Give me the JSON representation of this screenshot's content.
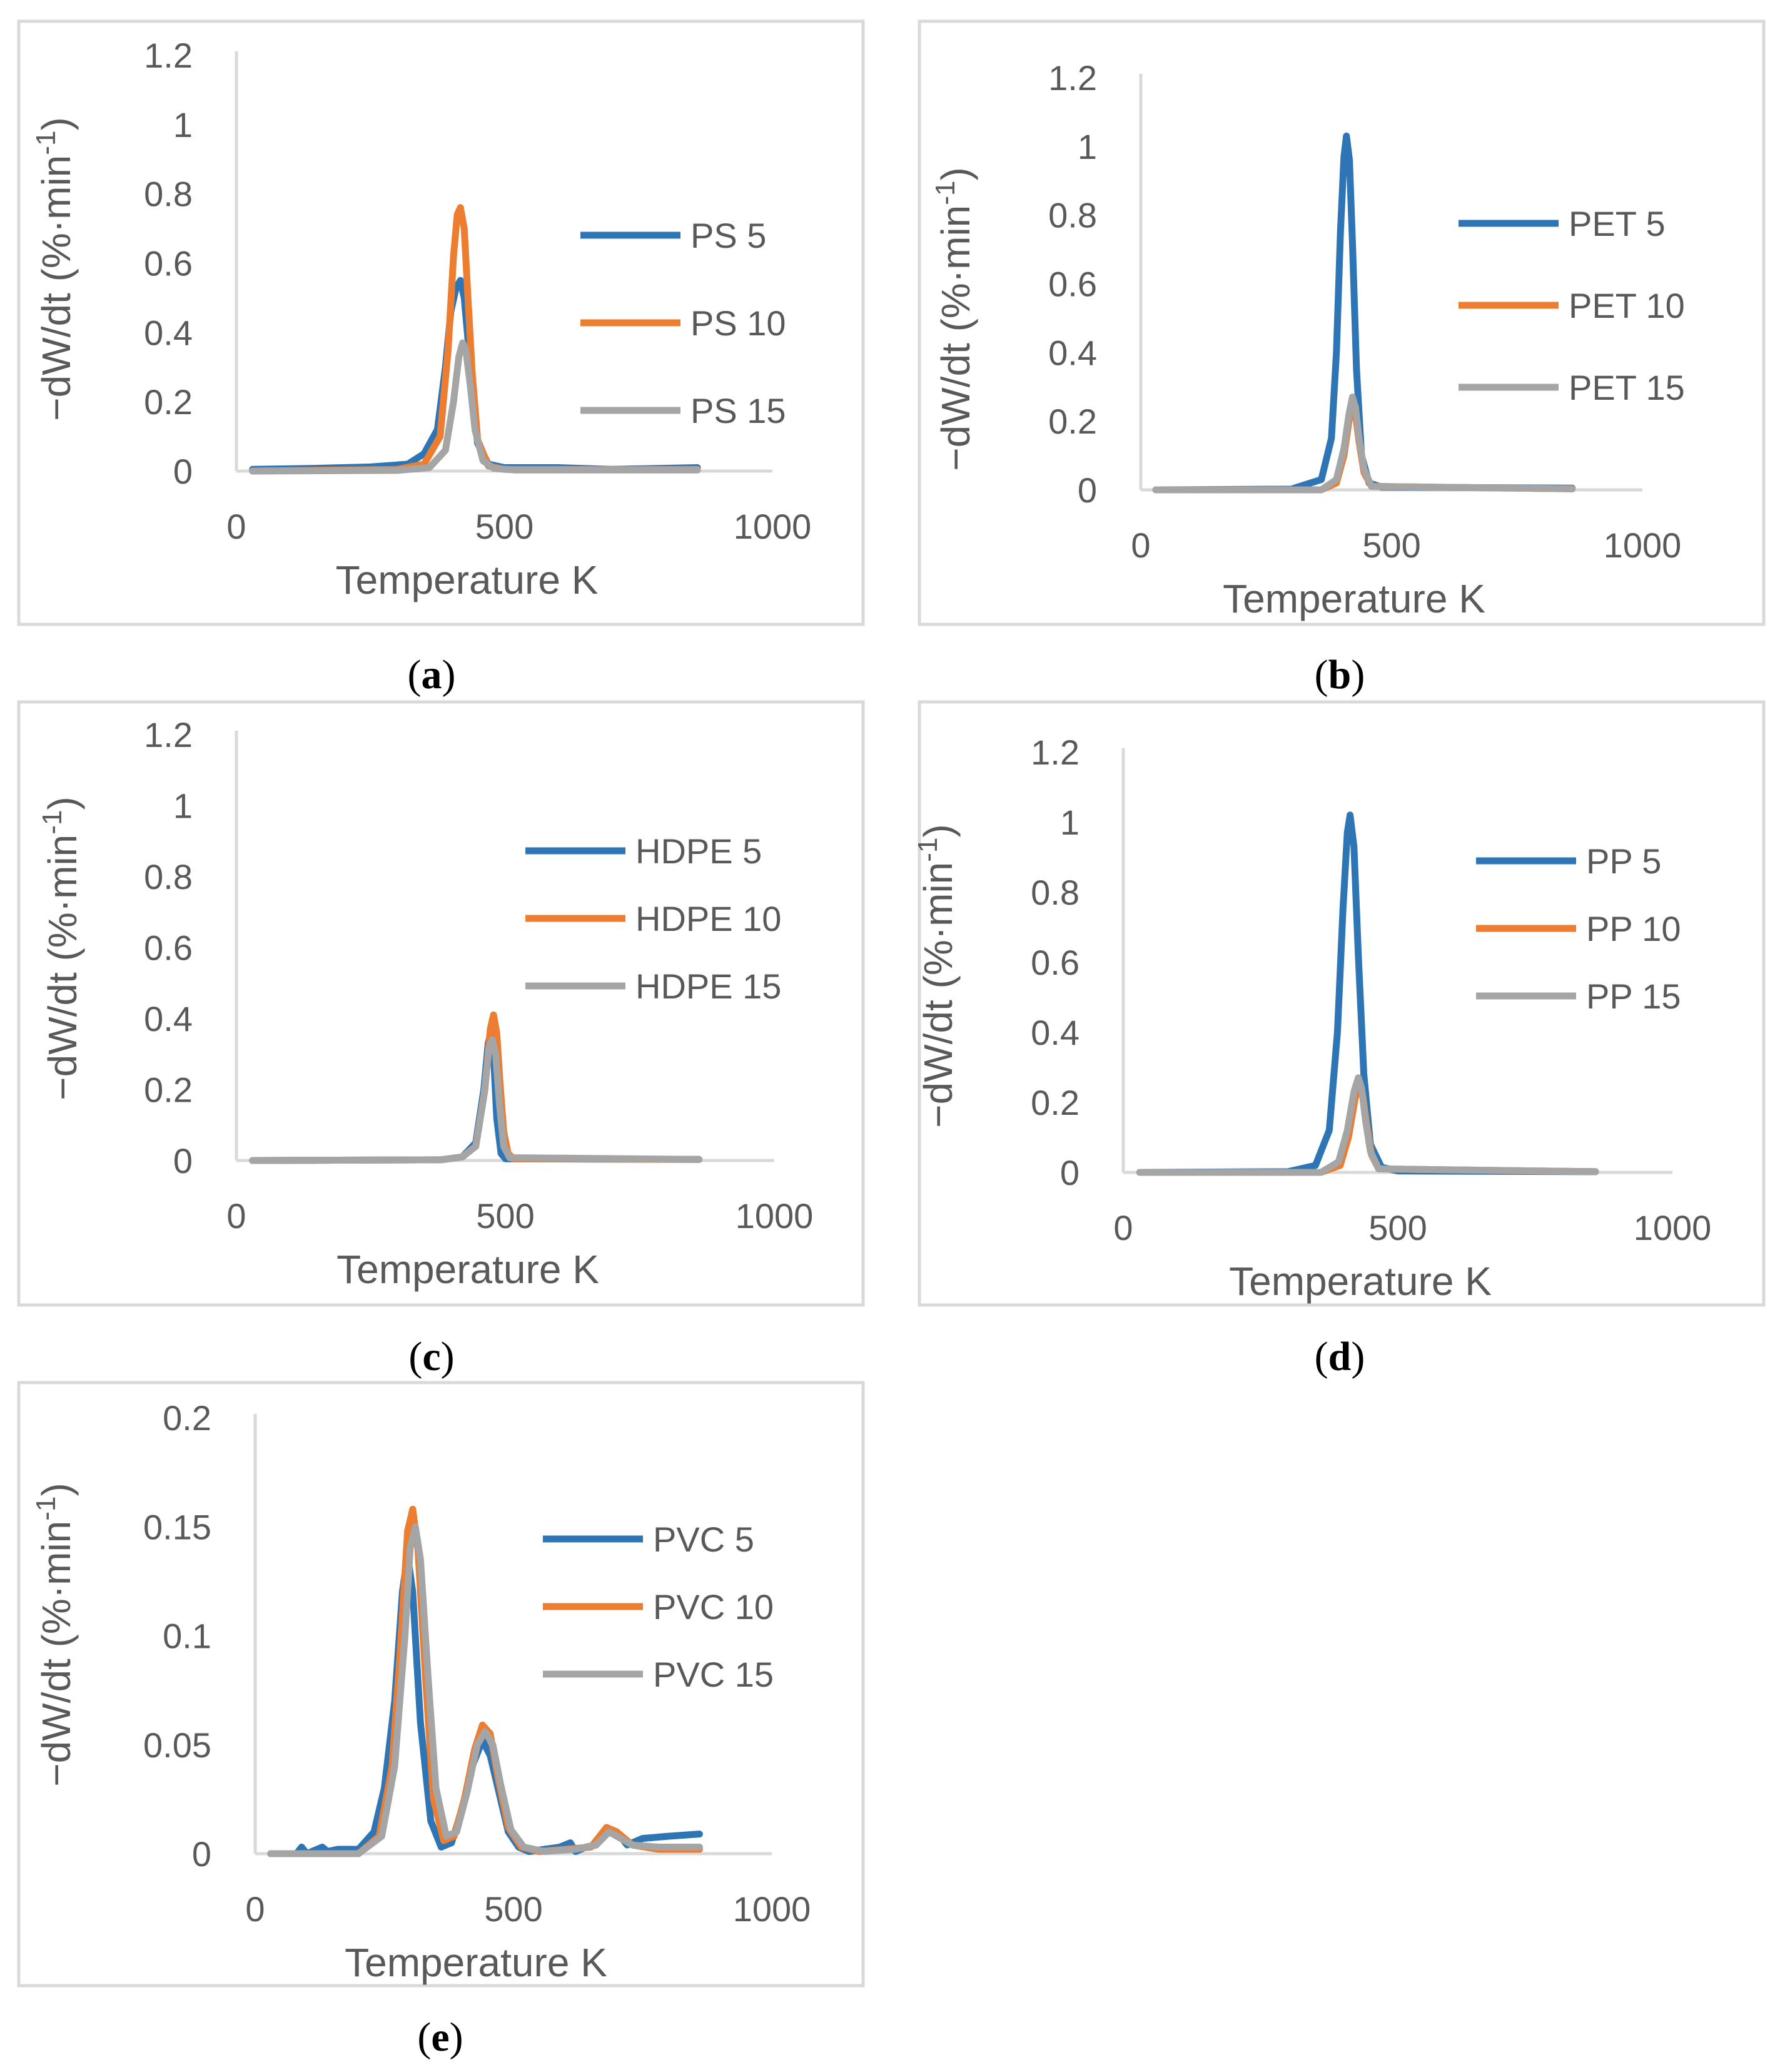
{
  "colors": {
    "series1": "#2E75B6",
    "series2": "#ED7D31",
    "series3": "#A5A5A5"
  },
  "chart_data": [
    {
      "id": "a",
      "caption": "a",
      "type": "line",
      "xlabel": "Temperature K",
      "ylabel": "−dW/dt (%·min",
      "ylabel_sup": "-1",
      "ylabel_close": ")",
      "xlim": [
        0,
        1000
      ],
      "ylim": [
        0,
        1.2
      ],
      "xticks": [
        0,
        500,
        1000
      ],
      "xtick_labels": [
        "0",
        "500",
        "1000"
      ],
      "yticks": [
        0,
        0.2,
        0.4,
        0.6,
        0.8,
        1,
        1.2
      ],
      "ytick_labels": [
        "0",
        "0.2",
        "0.4",
        "0.6",
        "0.8",
        "1",
        "1.2"
      ],
      "legend_position": "right",
      "series": [
        {
          "name": "PS 5",
          "x": [
            30,
            150,
            250,
            320,
            350,
            375,
            390,
            400,
            410,
            418,
            425,
            432,
            440,
            450,
            470,
            500,
            600,
            700,
            860
          ],
          "y": [
            0.005,
            0.008,
            0.012,
            0.02,
            0.05,
            0.12,
            0.3,
            0.46,
            0.53,
            0.55,
            0.5,
            0.38,
            0.22,
            0.08,
            0.02,
            0.01,
            0.01,
            0.005,
            0.01
          ]
        },
        {
          "name": "PS 10",
          "x": [
            30,
            300,
            350,
            380,
            395,
            405,
            412,
            418,
            425,
            432,
            440,
            450,
            470,
            500,
            860
          ],
          "y": [
            0.0,
            0.005,
            0.02,
            0.1,
            0.35,
            0.62,
            0.74,
            0.76,
            0.7,
            0.5,
            0.28,
            0.09,
            0.015,
            0.005,
            0.005
          ]
        },
        {
          "name": "PS 15",
          "x": [
            30,
            300,
            360,
            390,
            405,
            415,
            422,
            428,
            436,
            445,
            460,
            480,
            520,
            860
          ],
          "y": [
            0.0,
            0.002,
            0.01,
            0.06,
            0.2,
            0.33,
            0.37,
            0.35,
            0.25,
            0.12,
            0.03,
            0.008,
            0.003,
            0.003
          ]
        }
      ]
    },
    {
      "id": "b",
      "caption": "b",
      "type": "line",
      "xlabel": "Temperature K",
      "ylabel": "−dW/dt (%·min",
      "ylabel_sup": "-1",
      "ylabel_close": ")",
      "xlim": [
        0,
        1000
      ],
      "ylim": [
        0,
        1.2
      ],
      "xticks": [
        0,
        500,
        1000
      ],
      "xtick_labels": [
        "0",
        "500",
        "1000"
      ],
      "yticks": [
        0,
        0.2,
        0.4,
        0.6,
        0.8,
        1,
        1.2
      ],
      "ytick_labels": [
        "0",
        "0.2",
        "0.4",
        "0.6",
        "0.8",
        "1",
        "1.2"
      ],
      "legend_position": "right",
      "series": [
        {
          "name": "PET 5",
          "x": [
            30,
            300,
            360,
            380,
            390,
            398,
            405,
            410,
            416,
            422,
            430,
            440,
            455,
            480,
            860
          ],
          "y": [
            0.0,
            0.002,
            0.03,
            0.15,
            0.4,
            0.75,
            0.97,
            1.03,
            0.96,
            0.72,
            0.35,
            0.1,
            0.02,
            0.008,
            0.005
          ]
        },
        {
          "name": "PET 10",
          "x": [
            30,
            360,
            390,
            405,
            415,
            422,
            428,
            435,
            445,
            460,
            860
          ],
          "y": [
            0.0,
            0.0,
            0.02,
            0.1,
            0.2,
            0.25,
            0.22,
            0.14,
            0.05,
            0.01,
            0.003
          ]
        },
        {
          "name": "PET 15",
          "x": [
            30,
            360,
            390,
            405,
            415,
            422,
            428,
            435,
            445,
            460,
            860
          ],
          "y": [
            0.0,
            0.0,
            0.03,
            0.12,
            0.22,
            0.27,
            0.24,
            0.15,
            0.06,
            0.01,
            0.003
          ]
        }
      ]
    },
    {
      "id": "c",
      "caption": "c",
      "type": "line",
      "xlabel": "Temperature K",
      "ylabel": "−dW/dt (%·min",
      "ylabel_sup": "-1",
      "ylabel_close": ")",
      "xlim": [
        0,
        1000
      ],
      "ylim": [
        0,
        1.2
      ],
      "xticks": [
        0,
        500,
        1000
      ],
      "xtick_labels": [
        "0",
        "500",
        "1000"
      ],
      "yticks": [
        0,
        0.2,
        0.4,
        0.6,
        0.8,
        1,
        1.2
      ],
      "ytick_labels": [
        "0",
        "0.2",
        "0.4",
        "0.6",
        "0.8",
        "1",
        "1.2"
      ],
      "legend_position": "right",
      "series": [
        {
          "name": "HDPE 5",
          "x": [
            30,
            380,
            420,
            445,
            460,
            468,
            473,
            478,
            484,
            492,
            500,
            860
          ],
          "y": [
            0.0,
            0.002,
            0.01,
            0.05,
            0.2,
            0.33,
            0.36,
            0.3,
            0.12,
            0.02,
            0.005,
            0.003
          ]
        },
        {
          "name": "HDPE 10",
          "x": [
            30,
            380,
            420,
            445,
            462,
            472,
            478,
            484,
            490,
            497,
            505,
            515,
            860
          ],
          "y": [
            0.0,
            0.002,
            0.01,
            0.04,
            0.2,
            0.37,
            0.41,
            0.36,
            0.22,
            0.08,
            0.02,
            0.005,
            0.003
          ]
        },
        {
          "name": "HDPE 15",
          "x": [
            30,
            380,
            420,
            445,
            460,
            470,
            476,
            482,
            489,
            497,
            508,
            860
          ],
          "y": [
            0.0,
            0.002,
            0.01,
            0.04,
            0.18,
            0.32,
            0.34,
            0.3,
            0.16,
            0.04,
            0.008,
            0.003
          ]
        }
      ]
    },
    {
      "id": "d",
      "caption": "d",
      "type": "line",
      "xlabel": "Temperature K",
      "ylabel": "−dW/dt (%·min",
      "ylabel_sup": "-1",
      "ylabel_close": ")",
      "xlim": [
        0,
        1000
      ],
      "ylim": [
        0,
        1.2
      ],
      "xticks": [
        0,
        500,
        1000
      ],
      "xtick_labels": [
        "0",
        "500",
        "1000"
      ],
      "yticks": [
        0,
        0.2,
        0.4,
        0.6,
        0.8,
        1,
        1.2
      ],
      "ytick_labels": [
        "0",
        "0.2",
        "0.4",
        "0.6",
        "0.8",
        "1",
        "1.2"
      ],
      "legend_position": "right",
      "series": [
        {
          "name": "PP 5",
          "x": [
            30,
            300,
            350,
            375,
            390,
            400,
            408,
            413,
            420,
            428,
            438,
            450,
            470,
            500,
            860
          ],
          "y": [
            0.0,
            0.002,
            0.02,
            0.12,
            0.4,
            0.75,
            0.97,
            1.02,
            0.93,
            0.62,
            0.28,
            0.08,
            0.015,
            0.004,
            0.002
          ]
        },
        {
          "name": "PP 10",
          "x": [
            30,
            360,
            395,
            410,
            422,
            430,
            436,
            443,
            452,
            465,
            860
          ],
          "y": [
            0.0,
            0.0,
            0.02,
            0.1,
            0.21,
            0.25,
            0.22,
            0.14,
            0.05,
            0.01,
            0.002
          ]
        },
        {
          "name": "PP 15",
          "x": [
            30,
            360,
            392,
            408,
            420,
            428,
            434,
            441,
            450,
            465,
            860
          ],
          "y": [
            0.0,
            0.0,
            0.03,
            0.12,
            0.23,
            0.27,
            0.24,
            0.15,
            0.06,
            0.01,
            0.002
          ]
        }
      ]
    },
    {
      "id": "e",
      "caption": "e",
      "type": "line",
      "xlabel": "Temperature K",
      "ylabel": "−dW/dt (%·min",
      "ylabel_sup": "-1",
      "ylabel_close": ")",
      "xlim": [
        0,
        1000
      ],
      "ylim": [
        0,
        0.2
      ],
      "xticks": [
        0,
        500,
        1000
      ],
      "xtick_labels": [
        "0",
        "500",
        "1000"
      ],
      "yticks": [
        0,
        0.05,
        0.1,
        0.15,
        0.2
      ],
      "ytick_labels": [
        "0",
        "0.05",
        "0.1",
        "0.15",
        "0.2"
      ],
      "legend_position": "right",
      "series": [
        {
          "name": "PVC 5",
          "x": [
            30,
            80,
            90,
            100,
            130,
            140,
            160,
            200,
            230,
            250,
            270,
            285,
            295,
            305,
            320,
            340,
            360,
            380,
            400,
            420,
            440,
            455,
            470,
            490,
            510,
            530,
            560,
            590,
            610,
            620,
            640,
            660,
            680,
            700,
            720,
            750,
            800,
            860
          ],
          "y": [
            0.0,
            0.0,
            0.003,
            0.0,
            0.003,
            0.001,
            0.002,
            0.002,
            0.01,
            0.03,
            0.07,
            0.12,
            0.137,
            0.12,
            0.06,
            0.015,
            0.003,
            0.005,
            0.02,
            0.04,
            0.052,
            0.045,
            0.03,
            0.01,
            0.003,
            0.001,
            0.002,
            0.003,
            0.005,
            0.001,
            0.003,
            0.004,
            0.012,
            0.01,
            0.004,
            0.007,
            0.008,
            0.009
          ]
        },
        {
          "name": "PVC 10",
          "x": [
            30,
            200,
            240,
            265,
            280,
            295,
            305,
            315,
            330,
            345,
            365,
            385,
            405,
            425,
            440,
            455,
            470,
            490,
            515,
            550,
            600,
            650,
            680,
            700,
            730,
            780,
            860
          ],
          "y": [
            0.0,
            0.0,
            0.008,
            0.04,
            0.09,
            0.148,
            0.158,
            0.14,
            0.08,
            0.025,
            0.006,
            0.008,
            0.025,
            0.048,
            0.059,
            0.055,
            0.035,
            0.012,
            0.003,
            0.001,
            0.002,
            0.003,
            0.012,
            0.01,
            0.004,
            0.002,
            0.002
          ]
        },
        {
          "name": "PVC 15",
          "x": [
            30,
            200,
            245,
            270,
            290,
            300,
            310,
            320,
            335,
            350,
            370,
            390,
            410,
            430,
            445,
            460,
            475,
            495,
            520,
            560,
            620,
            660,
            685,
            700,
            730,
            780,
            860
          ],
          "y": [
            0.0,
            0.0,
            0.008,
            0.04,
            0.1,
            0.14,
            0.15,
            0.135,
            0.08,
            0.03,
            0.008,
            0.01,
            0.028,
            0.05,
            0.056,
            0.05,
            0.032,
            0.011,
            0.003,
            0.001,
            0.002,
            0.004,
            0.01,
            0.008,
            0.004,
            0.003,
            0.003
          ]
        }
      ]
    }
  ]
}
